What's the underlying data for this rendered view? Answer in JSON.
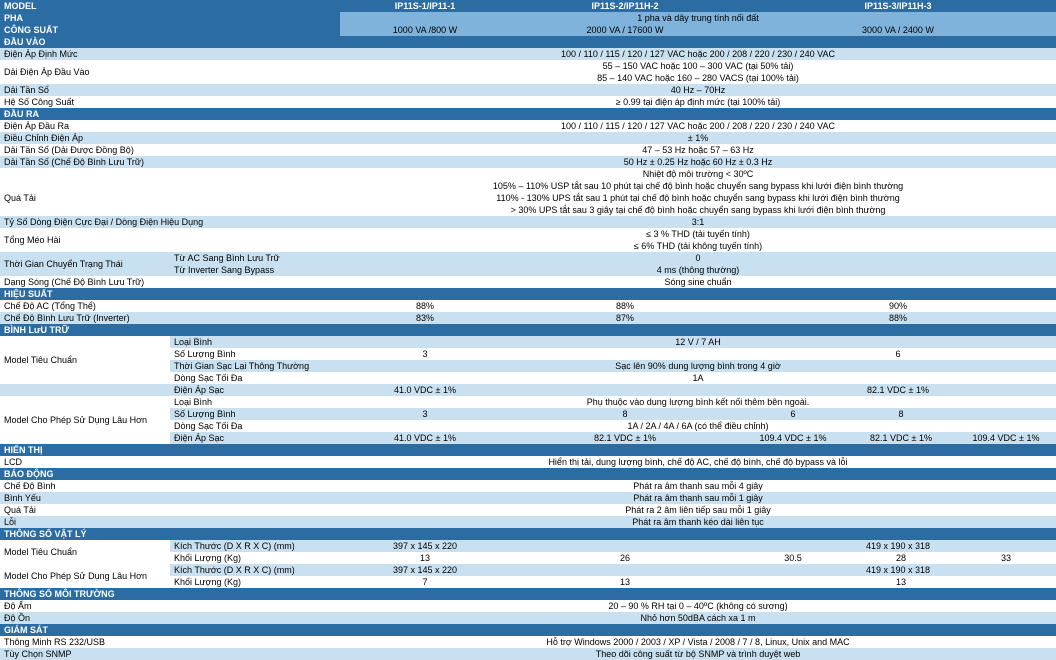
{
  "colors": {
    "dark": "#2b6ca3",
    "med": "#7fb3db",
    "light": "#c9e0f0",
    "white": "#ffffff"
  },
  "cols": {
    "label": 170,
    "sublabel": 170,
    "c1": 170,
    "c2": 230,
    "c3": 106,
    "c4": 110,
    "c5": 100
  },
  "header": {
    "model": "MODEL",
    "m1": "IP11S-1/IP11-1",
    "m2": "IP11S-2/IP11H-2",
    "m3": "IP11S-3/IP11H-3"
  },
  "sections": [
    {
      "type": "sec",
      "bg": "dark",
      "label": "PHA",
      "span": "1 pha và dây trung tính nối đất"
    },
    {
      "type": "sec",
      "bg": "dark",
      "label": "CÔNG SUẤT",
      "c1": "1000 VA /800 W",
      "c2": "2000 VA / 17600 W",
      "c345": "3000 VA / 2400 W"
    },
    {
      "type": "sec",
      "bg": "dark",
      "label": "ĐẦU VÀO"
    },
    {
      "type": "row",
      "bg": "light",
      "label": "Điện Áp Định Mức",
      "span": "100 / 110 / 115 / 120 / 127 VAC hoặc 200 / 208 / 220 / 230 / 240 VAC"
    },
    {
      "type": "row",
      "bg": "white",
      "label": "Dải Điện Áp Đầu Vào",
      "lines": [
        "55 – 150 VAC hoặc 100 – 300 VAC (tại 50% tải)",
        "85 – 140 VAC hoặc 160 – 280 VACS (tại 100% tải)"
      ]
    },
    {
      "type": "row",
      "bg": "light",
      "label": "Dải Tần Số",
      "span": "40 Hz – 70Hz"
    },
    {
      "type": "row",
      "bg": "white",
      "label": "Hệ Số Công Suất",
      "span": "≥ 0.99 tại điện áp định mức (tại 100% tải)"
    },
    {
      "type": "sec",
      "bg": "dark",
      "label": "ĐẦU RA"
    },
    {
      "type": "row",
      "bg": "white",
      "label": "Điện Áp Đầu Ra",
      "span": "100 / 110 / 115 / 120 / 127 VAC hoặc 200 / 208 / 220 / 230 / 240 VAC"
    },
    {
      "type": "row",
      "bg": "light",
      "label": "Điều Chỉnh Điện Áp",
      "span": "± 1%"
    },
    {
      "type": "row",
      "bg": "white",
      "label": "Dải Tần Số (Dải Được Đồng Bộ)",
      "span": "47 – 53 Hz hoặc 57 – 63 Hz"
    },
    {
      "type": "row",
      "bg": "light",
      "label": "Dải Tần Số (Chế Độ Bình Lưu Trữ)",
      "span": "50 Hz ± 0.25 Hz hoặc 60 Hz ± 0.3 Hz"
    },
    {
      "type": "row",
      "bg": "white",
      "label": "",
      "span": "Nhiệt độ môi trường < 30ºC"
    },
    {
      "type": "row",
      "bg": "white",
      "label": "Quá Tải",
      "lines": [
        "105% – 110% USP tắt sau 10 phút tại chế độ bình hoặc chuyển sang bypass khi lưới điện bình thường",
        "110% - 130% UPS tắt sau 1 phút tại chế độ bình hoặc chuyển sang bypass khi lưới điện bình thường",
        "> 30% UPS tắt sau 3 giây tại chế độ bình hoặc chuyển sang bypass khi lưới điện bình thường"
      ]
    },
    {
      "type": "row",
      "bg": "light",
      "label": "Tỷ Số Dòng Điện Cực Đại / Dòng Điện Hiệu Dụng",
      "span": "3:1"
    },
    {
      "type": "row",
      "bg": "white",
      "label": "Tổng Méo Hài",
      "lines": [
        "≤ 3 % THD (tải tuyến tính)",
        "≤ 6% THD (tải không tuyến tính)"
      ]
    },
    {
      "type": "row2",
      "bg": "light",
      "label": "Thời Gian Chuyển Trạng Thái",
      "sub1": "Từ AC Sang Bình Lưu Trữ",
      "span1": "0",
      "sub2": "Từ Inverter Sang Bypass",
      "span2": "4 ms (thông thường)"
    },
    {
      "type": "row",
      "bg": "white",
      "label": "Dạng Sóng (Chế Độ Bình Lưu Trữ)",
      "span": "Sóng sine chuẩn"
    },
    {
      "type": "sec",
      "bg": "dark",
      "label": "HIỆU SUẤT"
    },
    {
      "type": "row",
      "bg": "white",
      "label": "Chế Độ AC (Tổng Thể)",
      "c1": "88%",
      "c2": "88%",
      "c345": "90%"
    },
    {
      "type": "row",
      "bg": "light",
      "label": "Chế Độ Bình Lưu Trữ (Inverter)",
      "c1": "83%",
      "c2": "87%",
      "c345": "88%"
    },
    {
      "type": "sec",
      "bg": "dark",
      "label": "BÌNH LưU TRỮ"
    },
    {
      "type": "sub",
      "bg": "light",
      "sub": "Loại Bình",
      "span": "12 V / 7 AH",
      "rowlabel": "Model Tiêu Chuẩn",
      "rowspan": 4,
      "rowbg": "white"
    },
    {
      "type": "sub",
      "bg": "white",
      "sub": "Số Lượng Bình",
      "c1": "3",
      "c2": "",
      "c345": "6"
    },
    {
      "type": "sub",
      "bg": "light",
      "sub": "Thời Gian Sạc Lại Thông Thường",
      "span": "Sạc lên 90% dung lượng bình trong 4 giờ"
    },
    {
      "type": "sub",
      "bg": "white",
      "sub": "Dòng Sạc Tối Đa",
      "span": "1A"
    },
    {
      "type": "sub",
      "bg": "light",
      "sub": "Điện Áp Sạc",
      "c1": "41.0 VDC ± 1%",
      "c2": "",
      "c345": "82.1 VDC ± 1%",
      "rowlabel": "",
      "rowspan": 1,
      "rowbg": "light"
    },
    {
      "type": "sub",
      "bg": "white",
      "sub": "Loại Bình",
      "span": "Phụ thuộc vào dung lượng bình kết nối thêm bên ngoài.",
      "rowlabel": "Model Cho Phép Sử Dụng Lâu Hơn",
      "rowspan": 4,
      "rowbg": "white"
    },
    {
      "type": "sub",
      "bg": "light",
      "sub": "Số Lượng Bình",
      "c1": "3",
      "c2": "8",
      "c3": "6",
      "c4": "8",
      "c5": ""
    },
    {
      "type": "sub",
      "bg": "white",
      "sub": "Dòng Sạc Tối Đa",
      "span": "1A / 2A / 4A / 6A (có thể điều chỉnh)"
    },
    {
      "type": "sub",
      "bg": "light",
      "sub": "Điện Áp Sạc",
      "c1": "41.0 VDC ± 1%",
      "c2": "82.1 VDC ± 1%",
      "c3": "109.4 VDC ± 1%",
      "c4": "82.1 VDC ± 1%",
      "c5": "109.4 VDC ± 1%"
    },
    {
      "type": "sec",
      "bg": "dark",
      "label": "HIỂN THỊ"
    },
    {
      "type": "row",
      "bg": "white",
      "label": "LCD",
      "span": "Hiển thị tải, dung lượng bình, chế độ AC, chế độ bình, chế độ bypass và lỗi"
    },
    {
      "type": "sec",
      "bg": "dark",
      "label": "BÁO ĐỘNG"
    },
    {
      "type": "row",
      "bg": "white",
      "label": "Chế Độ Bình",
      "span": "Phát ra âm thanh sau mỗi 4 giây"
    },
    {
      "type": "row",
      "bg": "light",
      "label": "Bình Yếu",
      "span": "Phát ra âm thanh sau mỗi 1 giây"
    },
    {
      "type": "row",
      "bg": "white",
      "label": "Quá Tải",
      "span": "Phát ra 2 âm liên tiếp sau mỗi 1 giây"
    },
    {
      "type": "row",
      "bg": "light",
      "label": "Lỗi",
      "span": "Phát ra âm thanh kéo dài liên tục"
    },
    {
      "type": "sec",
      "bg": "dark",
      "label": "THÔNG SỐ VẬT LÝ"
    },
    {
      "type": "sub",
      "bg": "light",
      "sub": "Kích Thước (D X R X C) (mm)",
      "c1": "397 x 145 x 220",
      "c2": "",
      "c345": "419 x 190 x 318",
      "rowlabel": "Model Tiêu Chuẩn",
      "rowspan": 2,
      "rowbg": "white"
    },
    {
      "type": "sub",
      "bg": "white",
      "sub": "Khối Lượng (Kg)",
      "c1": "13",
      "c2": "26",
      "c3": "30.5",
      "c4": "28",
      "c5": "33"
    },
    {
      "type": "sub",
      "bg": "light",
      "sub": "Kích Thước (D X R X C) (mm)",
      "c1": "397 x 145 x 220",
      "c2": "",
      "c345": "419 x 190 x 318",
      "rowlabel": "Model Cho Phép Sử Dụng Lâu Hơn",
      "rowspan": 2,
      "rowbg": "white"
    },
    {
      "type": "sub",
      "bg": "white",
      "sub": "Khối Lượng (Kg)",
      "c1": "7",
      "c2": "13",
      "c3": "",
      "c4": "13",
      "c5": ""
    },
    {
      "type": "sec",
      "bg": "dark",
      "label": "THÔNG SỐ MÔI TRƯỜNG"
    },
    {
      "type": "row",
      "bg": "white",
      "label": "Độ Ẩm",
      "span": "20 – 90 % RH tại 0 – 40ºC (không có sương)"
    },
    {
      "type": "row",
      "bg": "light",
      "label": "Độ Ồn",
      "span": "Nhỏ hơn 50dBA  cách xa 1 m"
    },
    {
      "type": "sec",
      "bg": "dark",
      "label": "GIÁM SÁT"
    },
    {
      "type": "row",
      "bg": "white",
      "label": "Thông Minh RS 232/USB",
      "span": "Hỗ trợ Windows 2000 / 2003 / XP / Vista / 2008 / 7 / 8, Linux, Unix and MAC"
    },
    {
      "type": "row",
      "bg": "light",
      "label": "Tùy Chọn SNMP",
      "span": "Theo dõi công suất từ bộ  SNMP và trình duyệt web"
    }
  ]
}
